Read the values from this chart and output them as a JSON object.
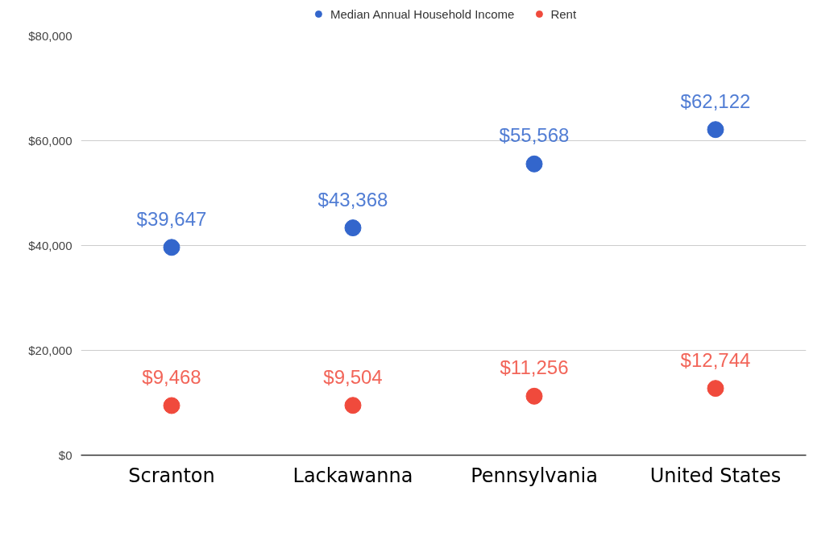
{
  "chart_data": {
    "type": "scatter",
    "categories": [
      "Scranton",
      "Lackawanna",
      "Pennsylvania",
      "United States"
    ],
    "series": [
      {
        "name": "Median Annual Household Income",
        "color": "#3366cc",
        "values": [
          39647,
          43368,
          55568,
          62122
        ],
        "value_labels": [
          "$39,647",
          "$43,368",
          "$55,568",
          "$62,122"
        ]
      },
      {
        "name": "Rent",
        "color": "#f04a3c",
        "values": [
          9468,
          9504,
          11256,
          12744
        ],
        "value_labels": [
          "$9,468",
          "$9,504",
          "$11,256",
          "$12,744"
        ]
      }
    ],
    "ylim": [
      0,
      80000
    ],
    "yticks": [
      {
        "value": 0,
        "label": "$0"
      },
      {
        "value": 20000,
        "label": "$20,000"
      },
      {
        "value": 40000,
        "label": "$40,000"
      },
      {
        "value": 60000,
        "label": "$60,000"
      },
      {
        "value": 80000,
        "label": "$80,000"
      }
    ],
    "grid": "y",
    "legend": "top",
    "marker": "circle"
  }
}
